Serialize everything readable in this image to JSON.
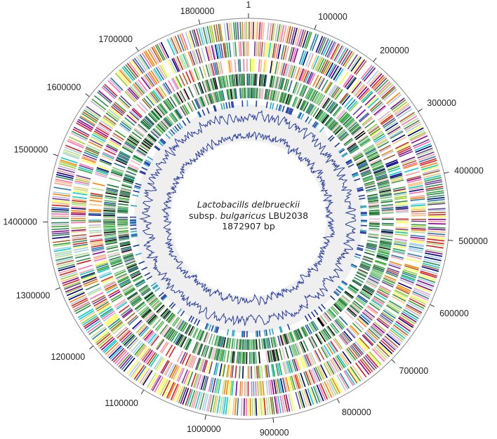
{
  "genome": {
    "species_name": "Lactobacills delbrueckii",
    "subspecies_prefix": "subsp.",
    "subspecies_name": "bulgaricus",
    "strain": "LBU2038",
    "size_label": "1872907 bp",
    "total_bp": 1872907
  },
  "ticks": [
    {
      "pos": 1,
      "label": "1"
    },
    {
      "pos": 100000,
      "label": "100000"
    },
    {
      "pos": 200000,
      "label": "200000"
    },
    {
      "pos": 300000,
      "label": "300000"
    },
    {
      "pos": 400000,
      "label": "400000"
    },
    {
      "pos": 500000,
      "label": "500000"
    },
    {
      "pos": 600000,
      "label": "600000"
    },
    {
      "pos": 700000,
      "label": "700000"
    },
    {
      "pos": 800000,
      "label": "800000"
    },
    {
      "pos": 900000,
      "label": "900000"
    },
    {
      "pos": 1000000,
      "label": "1000000"
    },
    {
      "pos": 1100000,
      "label": "1100000"
    },
    {
      "pos": 1200000,
      "label": "1200000"
    },
    {
      "pos": 1300000,
      "label": "1300000"
    },
    {
      "pos": 1400000,
      "label": "1400000"
    },
    {
      "pos": 1500000,
      "label": "1500000"
    },
    {
      "pos": 1600000,
      "label": "1600000"
    },
    {
      "pos": 1700000,
      "label": "1700000"
    },
    {
      "pos": 1800000,
      "label": "1800000"
    }
  ],
  "palette": {
    "cog": [
      "#e31a1c",
      "#33a02c",
      "#1f78b4",
      "#ff7f00",
      "#6a3d9a",
      "#b15928",
      "#fb9a99",
      "#b2df8a",
      "#a6cee3",
      "#fdbf6f",
      "#cab2d6",
      "#ffff33",
      "#00ced1",
      "#8b008b",
      "#2e8b57",
      "#000080",
      "#ff69b4",
      "#9acd32"
    ],
    "green": [
      "#1b7837",
      "#33a02c",
      "#5aae61",
      "#0b5d2a",
      "#66bd63",
      "#2d6a4f",
      "#1a9850",
      "#78c679",
      "#000000",
      "#1f5f99"
    ],
    "pink": "#f4b6c8",
    "rna_blue": "#1f3aa6",
    "rna_teal": "#2aa6c8",
    "plot_line": "#2a3f9e",
    "backbone": "#888888",
    "gc_band": "#efefef"
  },
  "gc_content": {
    "mean": 0.5
  },
  "gc_skew": {
    "mean": 0.0
  }
}
